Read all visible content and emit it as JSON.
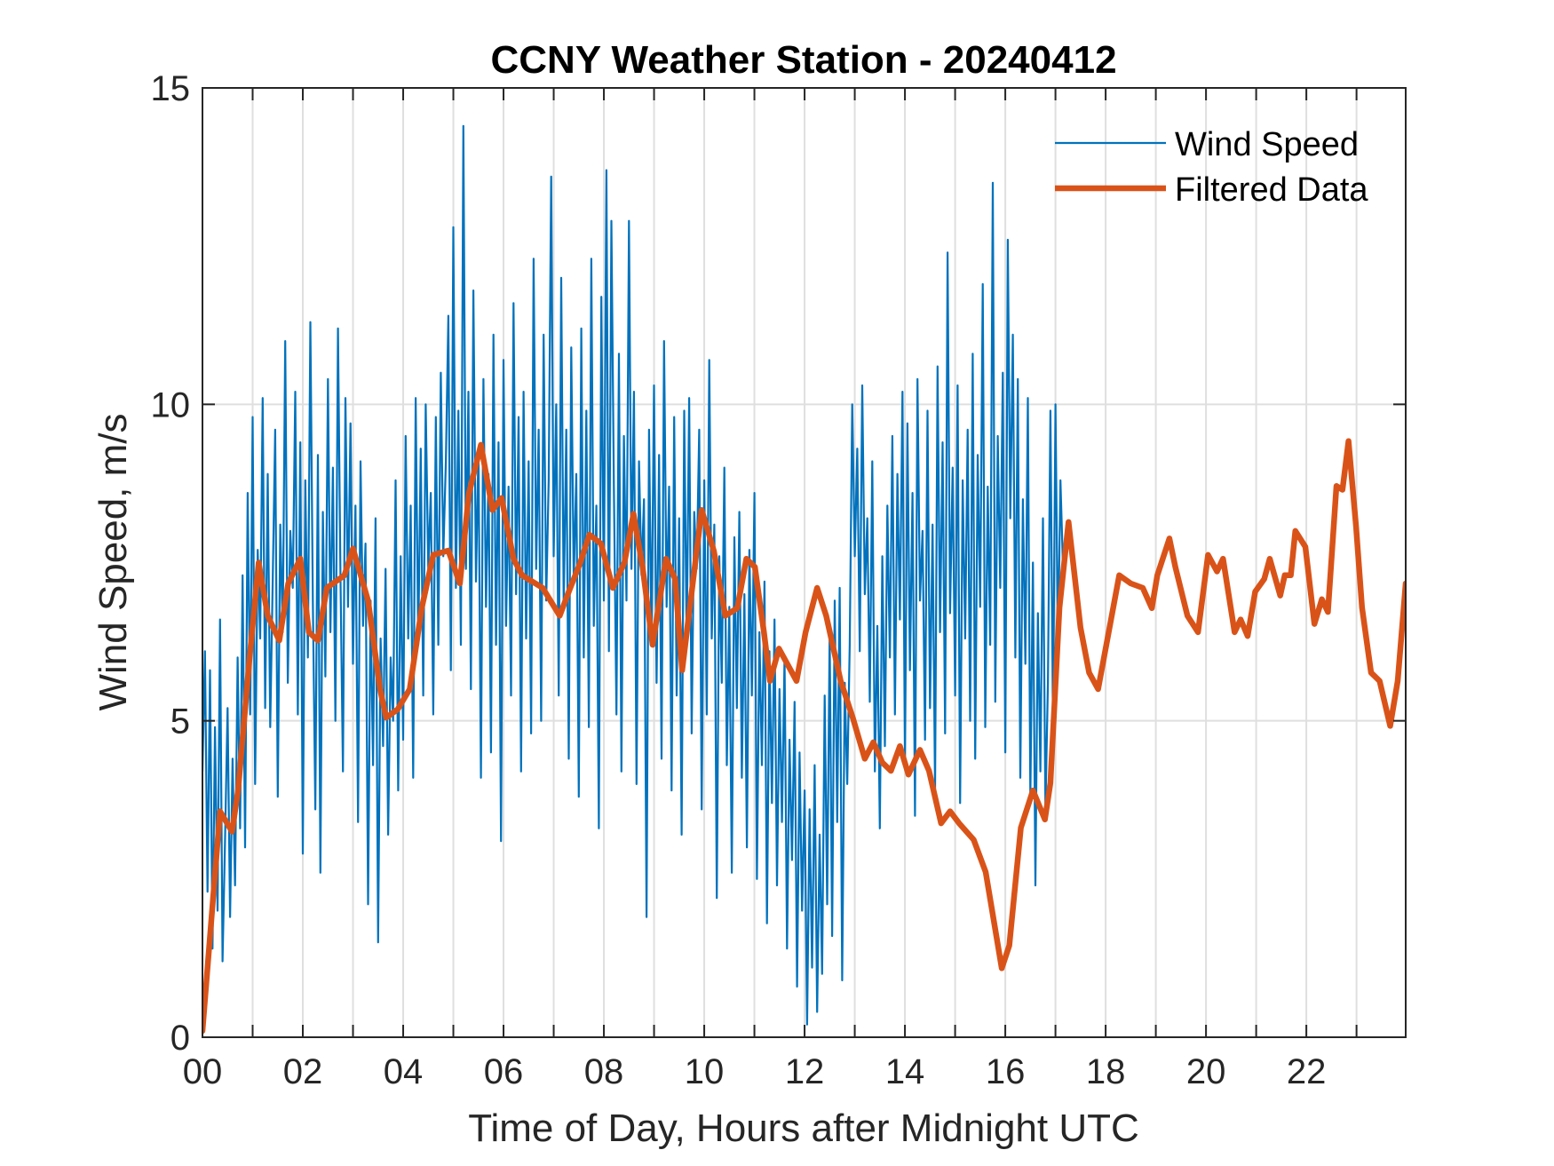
{
  "chart_data": {
    "type": "line",
    "title": "CCNY Weather Station - 20240412",
    "xlabel": "Time of Day, Hours after Midnight UTC",
    "ylabel": "Wind Speed, m/s",
    "xlim": [
      0,
      24
    ],
    "ylim": [
      0,
      15
    ],
    "x_ticks": [
      0,
      2,
      4,
      6,
      8,
      10,
      12,
      14,
      16,
      18,
      20,
      22
    ],
    "x_tick_labels": [
      "00",
      "02",
      "04",
      "06",
      "08",
      "10",
      "12",
      "14",
      "16",
      "18",
      "20",
      "22"
    ],
    "x_minor_grid_step": 1,
    "y_ticks": [
      0,
      5,
      10,
      15
    ],
    "y_tick_labels": [
      "0",
      "5",
      "10",
      "15"
    ],
    "grid": true,
    "legend": {
      "placement": "top-right",
      "entries": [
        {
          "label": "Wind Speed",
          "color": "#0072BD"
        },
        {
          "label": "Filtered Data",
          "color": "#D95319"
        }
      ]
    },
    "series": [
      {
        "name": "Wind Speed",
        "color": "#0072BD",
        "x_start": 0.0,
        "x_step": 0.05,
        "values": [
          4.2,
          6.1,
          2.3,
          5.8,
          1.4,
          4.9,
          2.0,
          6.6,
          1.2,
          3.1,
          5.2,
          1.9,
          4.4,
          2.4,
          6.0,
          3.3,
          7.3,
          3.0,
          8.6,
          5.1,
          9.8,
          4.0,
          7.7,
          6.3,
          10.1,
          5.2,
          8.9,
          4.9,
          7.2,
          9.6,
          3.8,
          8.1,
          6.4,
          11.0,
          5.6,
          8.0,
          7.1,
          10.2,
          5.1,
          9.4,
          2.9,
          8.8,
          6.0,
          11.3,
          6.9,
          3.6,
          9.2,
          2.6,
          8.3,
          5.7,
          10.4,
          6.4,
          9.0,
          5.0,
          11.2,
          7.3,
          4.2,
          10.1,
          6.8,
          9.7,
          5.9,
          8.4,
          3.4,
          9.1,
          6.5,
          7.8,
          2.1,
          6.9,
          4.3,
          8.2,
          1.5,
          6.3,
          4.6,
          7.4,
          3.2,
          6.0,
          5.0,
          8.8,
          3.9,
          7.6,
          4.7,
          9.5,
          6.3,
          8.4,
          4.1,
          10.1,
          6.2,
          9.3,
          5.4,
          10.0,
          7.4,
          8.6,
          5.1,
          9.8,
          6.2,
          10.5,
          7.6,
          9.1,
          11.4,
          5.8,
          12.8,
          7.1,
          9.9,
          6.2,
          14.4,
          7.4,
          10.2,
          5.5,
          11.8,
          7.2,
          9.3,
          4.1,
          10.4,
          6.8,
          8.9,
          4.5,
          11.1,
          6.2,
          9.4,
          3.1,
          10.7,
          6.5,
          8.7,
          5.4,
          11.6,
          7.0,
          9.8,
          4.2,
          10.2,
          6.3,
          9.1,
          4.8,
          12.3,
          7.4,
          9.6,
          5.0,
          11.1,
          6.9,
          8.8,
          13.6,
          7.6,
          10.0,
          5.4,
          12.0,
          6.8,
          9.6,
          4.4,
          10.9,
          7.2,
          8.9,
          3.8,
          11.2,
          6.0,
          9.9,
          4.9,
          12.3,
          6.5,
          8.4,
          3.3,
          11.7,
          6.9,
          13.7,
          6.1,
          12.9,
          8.7,
          5.1,
          10.8,
          4.2,
          9.5,
          6.9,
          12.9,
          7.4,
          10.2,
          4.0,
          9.1,
          7.3,
          8.5,
          1.9,
          9.6,
          6.2,
          10.3,
          5.6,
          9.2,
          4.4,
          11.0,
          6.8,
          8.7,
          3.9,
          9.8,
          5.4,
          8.2,
          3.2,
          9.9,
          6.2,
          10.1,
          4.8,
          8.3,
          7.4,
          9.6,
          3.6,
          8.8,
          5.1,
          10.7,
          6.3,
          8.1,
          2.2,
          7.6,
          5.6,
          9.0,
          4.3,
          6.8,
          2.6,
          7.9,
          5.2,
          8.3,
          4.1,
          7.0,
          3.0,
          7.7,
          5.4,
          8.6,
          2.5,
          6.4,
          4.3,
          7.2,
          1.8,
          6.1,
          3.7,
          6.6,
          2.4,
          5.5,
          3.4,
          6.0,
          1.4,
          4.7,
          2.8,
          5.3,
          0.8,
          4.5,
          2.0,
          3.9,
          0.2,
          3.6,
          1.1,
          4.3,
          0.4,
          3.2,
          1.0,
          5.4,
          2.1,
          6.4,
          1.6,
          6.9,
          3.4,
          7.1,
          0.9,
          5.6,
          4.0,
          6.2,
          10.0,
          7.6,
          9.3,
          6.1,
          10.3,
          7.0,
          8.2,
          5.3,
          9.1,
          4.2,
          6.5,
          3.3,
          7.6,
          4.6,
          8.4,
          6.0,
          9.5,
          5.1,
          8.9,
          6.6,
          10.2,
          4.3,
          9.7,
          5.8,
          8.6,
          3.5,
          10.4,
          6.9,
          8.0,
          4.7,
          9.9,
          5.2,
          8.1,
          3.9,
          10.6,
          6.4,
          9.4,
          4.8,
          12.4,
          6.7,
          9.0,
          5.4,
          10.3,
          3.7,
          8.8,
          6.3,
          9.6,
          5.0,
          10.8,
          4.4,
          9.2,
          6.8,
          11.9,
          4.9,
          8.7,
          6.2,
          13.5,
          5.3,
          9.5,
          7.1,
          10.5,
          4.5,
          12.6,
          8.2,
          11.1,
          6.0,
          10.4,
          4.1,
          8.5,
          5.9,
          10.1,
          3.8,
          7.5,
          2.4,
          6.7,
          4.2,
          8.2,
          3.6,
          5.6,
          9.9,
          4.9,
          10.0,
          6.1,
          8.8,
          7.4
        ]
      },
      {
        "name": "Filtered Data",
        "color": "#D95319",
        "x": [
          0.0,
          0.35,
          0.59,
          0.71,
          0.94,
          1.12,
          1.3,
          1.53,
          1.71,
          1.95,
          2.12,
          2.3,
          2.48,
          2.83,
          3.0,
          3.3,
          3.54,
          3.66,
          3.89,
          4.13,
          4.37,
          4.6,
          4.9,
          5.13,
          5.31,
          5.55,
          5.78,
          5.96,
          6.2,
          6.37,
          6.78,
          7.12,
          7.3,
          7.53,
          7.71,
          7.94,
          8.18,
          8.41,
          8.59,
          8.77,
          8.97,
          9.24,
          9.42,
          9.56,
          9.77,
          9.95,
          10.19,
          10.42,
          10.66,
          10.84,
          11.01,
          11.19,
          11.31,
          11.49,
          11.66,
          11.84,
          12.02,
          12.25,
          12.43,
          12.72,
          12.96,
          13.2,
          13.37,
          13.55,
          13.72,
          13.9,
          14.07,
          14.3,
          14.48,
          14.72,
          14.9,
          15.08,
          15.37,
          15.61,
          15.93,
          16.08,
          16.31,
          16.55,
          16.79,
          16.9,
          17.08,
          17.26,
          17.5,
          17.67,
          17.85,
          18.03,
          18.27,
          18.5,
          18.74,
          18.92,
          19.03,
          19.27,
          19.39,
          19.63,
          19.84,
          20.04,
          20.22,
          20.34,
          20.57,
          20.69,
          20.83,
          20.98,
          21.16,
          21.27,
          21.48,
          21.57,
          21.69,
          21.78,
          21.98,
          22.16,
          22.31,
          22.43,
          22.6,
          22.72,
          22.84,
          22.99,
          23.11,
          23.29,
          23.46,
          23.67,
          23.82,
          24.0
        ],
        "values": [
          0.1,
          3.57,
          3.25,
          3.9,
          6.0,
          7.5,
          6.66,
          6.27,
          7.17,
          7.56,
          6.4,
          6.27,
          7.1,
          7.3,
          7.72,
          6.9,
          5.5,
          5.05,
          5.18,
          5.5,
          6.78,
          7.62,
          7.69,
          7.17,
          8.59,
          9.36,
          8.33,
          8.52,
          7.56,
          7.3,
          7.1,
          6.66,
          7.04,
          7.5,
          7.94,
          7.8,
          7.1,
          7.5,
          8.27,
          7.43,
          6.2,
          7.56,
          7.24,
          5.8,
          7.17,
          8.33,
          7.69,
          6.66,
          6.78,
          7.56,
          7.43,
          6.4,
          5.63,
          6.14,
          5.89,
          5.63,
          6.4,
          7.1,
          6.66,
          5.63,
          5.05,
          4.4,
          4.66,
          4.34,
          4.21,
          4.6,
          4.15,
          4.54,
          4.21,
          3.38,
          3.57,
          3.38,
          3.12,
          2.61,
          1.09,
          1.45,
          3.31,
          3.9,
          3.44,
          4.02,
          6.79,
          8.14,
          6.47,
          5.76,
          5.5,
          6.27,
          7.3,
          7.17,
          7.1,
          6.78,
          7.3,
          7.88,
          7.43,
          6.66,
          6.4,
          7.62,
          7.36,
          7.56,
          6.4,
          6.6,
          6.34,
          7.04,
          7.24,
          7.56,
          6.98,
          7.3,
          7.3,
          8.0,
          7.75,
          6.53,
          6.92,
          6.72,
          8.71,
          8.65,
          9.42,
          8.07,
          6.79,
          5.76,
          5.63,
          4.92,
          5.63,
          7.17
        ]
      }
    ]
  }
}
